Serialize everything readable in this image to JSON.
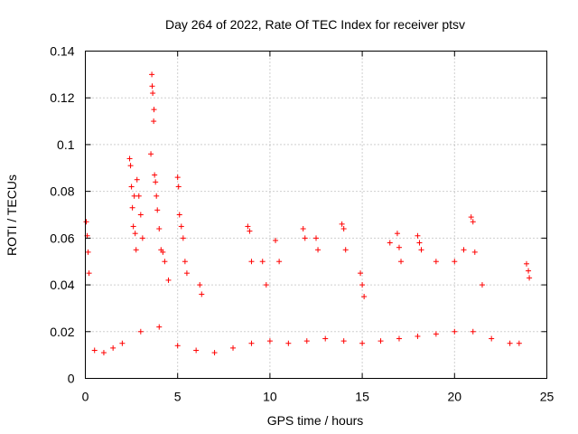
{
  "chart_data": {
    "type": "scatter",
    "title": "Day 264 of 2022, Rate Of TEC Index for receiver ptsv",
    "xlabel": "GPS time / hours",
    "ylabel": "ROTI / TECUs",
    "xlim": [
      0,
      25
    ],
    "ylim": [
      0,
      0.14
    ],
    "xticks": [
      "0",
      "5",
      "10",
      "15",
      "20",
      "25"
    ],
    "yticks": [
      "0",
      "0.02",
      "0.04",
      "0.06",
      "0.08",
      "0.1",
      "0.12",
      "0.14"
    ],
    "grid": true,
    "marker": "+",
    "color": "#ff0000",
    "series": [
      {
        "x": [
          0.05,
          0.1,
          0.15,
          0.2,
          2.4,
          2.45,
          2.5,
          2.55,
          2.6,
          2.65,
          2.7,
          2.75,
          2.8,
          2.9,
          3.0,
          3.1,
          3.55,
          3.6,
          3.62,
          3.65,
          3.7,
          3.72,
          3.75,
          3.8,
          3.85,
          3.9,
          4.0,
          4.1,
          4.2,
          4.3,
          4.5,
          5.0,
          5.05,
          5.1,
          5.2,
          5.3,
          5.4,
          5.5,
          6.2,
          6.3,
          8.8,
          8.9,
          9.0,
          9.6,
          9.8,
          10.3,
          10.5,
          11.8,
          11.9,
          12.5,
          12.6,
          13.9,
          14.0,
          14.1,
          14.9,
          15.0,
          15.1,
          16.5,
          16.9,
          17.0,
          17.1,
          18.0,
          18.1,
          18.2,
          19.0,
          20.0,
          20.5,
          20.9,
          21.0,
          21.1,
          21.5,
          23.9,
          24.0,
          24.05,
          0.5,
          1.0,
          1.5,
          2.0,
          3.0,
          4.0,
          5.0,
          6.0,
          7.0,
          8.0,
          9.0,
          10.0,
          11.0,
          12.0,
          13.0,
          14.0,
          15.0,
          16.0,
          17.0,
          18.0,
          19.0,
          20.0,
          21.0,
          22.0,
          23.0,
          23.5
        ],
        "y": [
          0.067,
          0.061,
          0.054,
          0.045,
          0.094,
          0.091,
          0.082,
          0.073,
          0.065,
          0.078,
          0.062,
          0.055,
          0.085,
          0.078,
          0.07,
          0.06,
          0.096,
          0.13,
          0.125,
          0.122,
          0.11,
          0.115,
          0.087,
          0.084,
          0.078,
          0.072,
          0.064,
          0.055,
          0.054,
          0.05,
          0.042,
          0.086,
          0.082,
          0.07,
          0.065,
          0.06,
          0.05,
          0.045,
          0.04,
          0.036,
          0.065,
          0.063,
          0.05,
          0.05,
          0.04,
          0.059,
          0.05,
          0.064,
          0.06,
          0.06,
          0.055,
          0.066,
          0.064,
          0.055,
          0.045,
          0.04,
          0.035,
          0.058,
          0.062,
          0.056,
          0.05,
          0.061,
          0.058,
          0.055,
          0.05,
          0.05,
          0.055,
          0.069,
          0.067,
          0.054,
          0.04,
          0.049,
          0.046,
          0.043,
          0.012,
          0.011,
          0.013,
          0.015,
          0.02,
          0.022,
          0.014,
          0.012,
          0.011,
          0.013,
          0.015,
          0.016,
          0.015,
          0.016,
          0.017,
          0.016,
          0.015,
          0.016,
          0.017,
          0.018,
          0.019,
          0.02,
          0.02,
          0.017,
          0.015,
          0.015
        ]
      }
    ]
  }
}
